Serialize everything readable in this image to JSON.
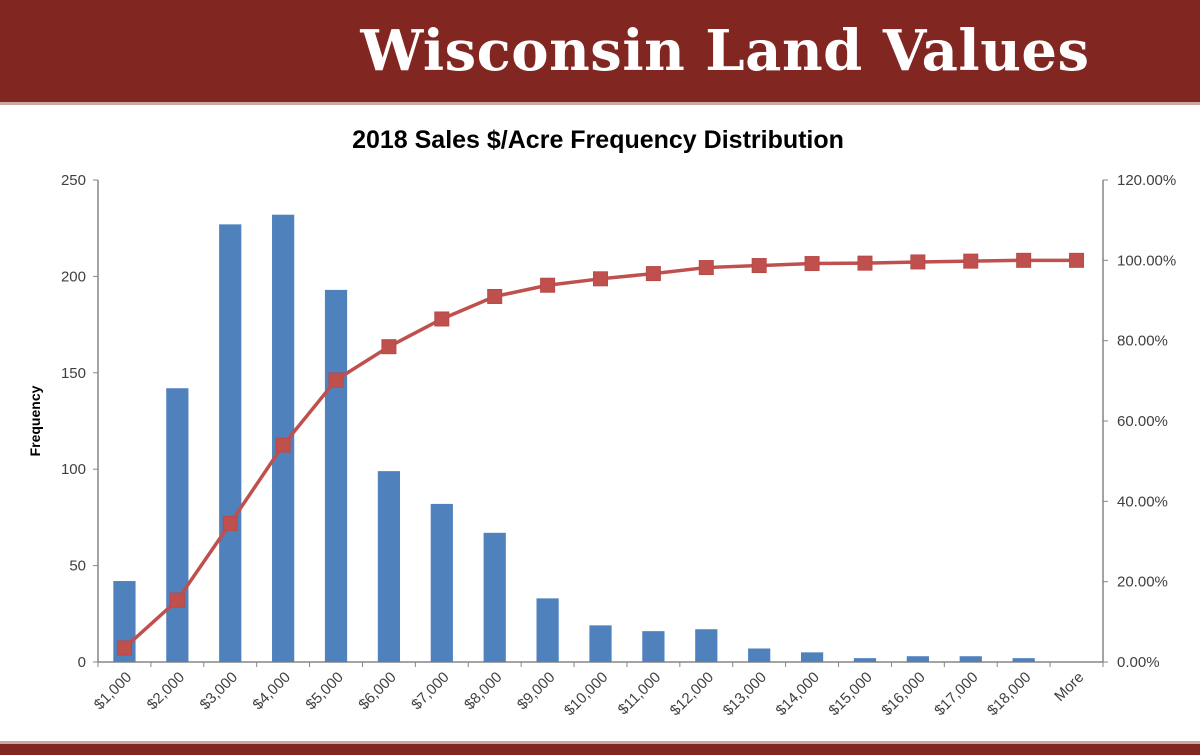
{
  "header": {
    "title": "Wisconsin Land Values"
  },
  "chart_data": {
    "type": "bar",
    "title": "2018 Sales $/Acre Frequency Distribution",
    "ylabel": "Frequency",
    "y2label": "",
    "ylim": [
      0,
      250
    ],
    "y2lim": [
      0,
      120
    ],
    "yticks": [
      "0",
      "50",
      "100",
      "150",
      "200",
      "250"
    ],
    "y2ticks": [
      "0.00%",
      "20.00%",
      "40.00%",
      "60.00%",
      "80.00%",
      "100.00%",
      "120.00%"
    ],
    "categories": [
      "$1,000",
      "$2,000",
      "$3,000",
      "$4,000",
      "$5,000",
      "$6,000",
      "$7,000",
      "$8,000",
      "$9,000",
      "$10,000",
      "$11,000",
      "$12,000",
      "$13,000",
      "$14,000",
      "$15,000",
      "$16,000",
      "$17,000",
      "$18,000",
      "More"
    ],
    "series": [
      {
        "type": "bar",
        "axis": "left",
        "color": "#4f81bd",
        "values": [
          42,
          142,
          227,
          232,
          193,
          99,
          82,
          67,
          33,
          19,
          16,
          17,
          7,
          5,
          2,
          3,
          3,
          2,
          0
        ]
      },
      {
        "type": "line",
        "axis": "right",
        "color": "#c0504d",
        "marker": "square",
        "values": [
          3.5,
          15.4,
          34.5,
          54.0,
          70.2,
          78.5,
          85.4,
          91.0,
          93.8,
          95.4,
          96.7,
          98.2,
          98.7,
          99.2,
          99.3,
          99.6,
          99.8,
          100,
          100
        ]
      }
    ],
    "grid": false,
    "legend": "none"
  }
}
